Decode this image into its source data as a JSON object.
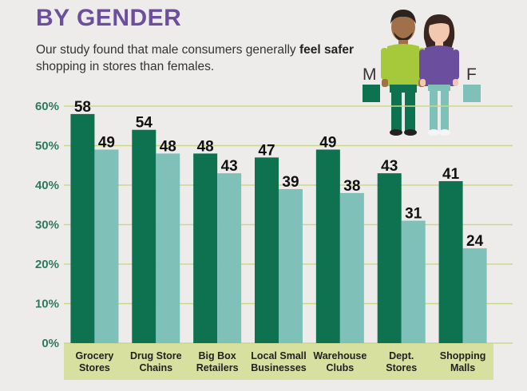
{
  "header": {
    "title": "BY GENDER",
    "subtitle_pre": "Our study found that male consumers generally ",
    "subtitle_bold": "feel safer",
    "subtitle_post": " shopping in stores than females."
  },
  "legend": {
    "male_label": "M",
    "female_label": "F",
    "male_color": "#0e7150",
    "female_color": "#7fc1b9"
  },
  "illustration": {
    "male_icon": "man-figure-icon",
    "female_icon": "woman-figure-icon"
  },
  "chart_data": {
    "type": "bar",
    "categories": [
      [
        "Grocery",
        "Stores"
      ],
      [
        "Drug Store",
        "Chains"
      ],
      [
        "Big Box",
        "Retailers"
      ],
      [
        "Local Small",
        "Businesses"
      ],
      [
        "Warehouse",
        "Clubs"
      ],
      [
        "Dept.",
        "Stores"
      ],
      [
        "Shopping",
        "Malls"
      ]
    ],
    "series": [
      {
        "name": "M",
        "values": [
          58,
          54,
          48,
          47,
          49,
          43,
          41
        ],
        "color": "#0e7150"
      },
      {
        "name": "F",
        "values": [
          49,
          48,
          43,
          39,
          38,
          31,
          24
        ],
        "color": "#7fc1b9"
      }
    ],
    "yticks": [
      "0%",
      "10%",
      "20%",
      "30%",
      "40%",
      "50%",
      "60%"
    ],
    "ylim": [
      0,
      60
    ],
    "grid": true,
    "gridline_color": "#c8d98a",
    "category_band_color": "#d7e09e"
  }
}
